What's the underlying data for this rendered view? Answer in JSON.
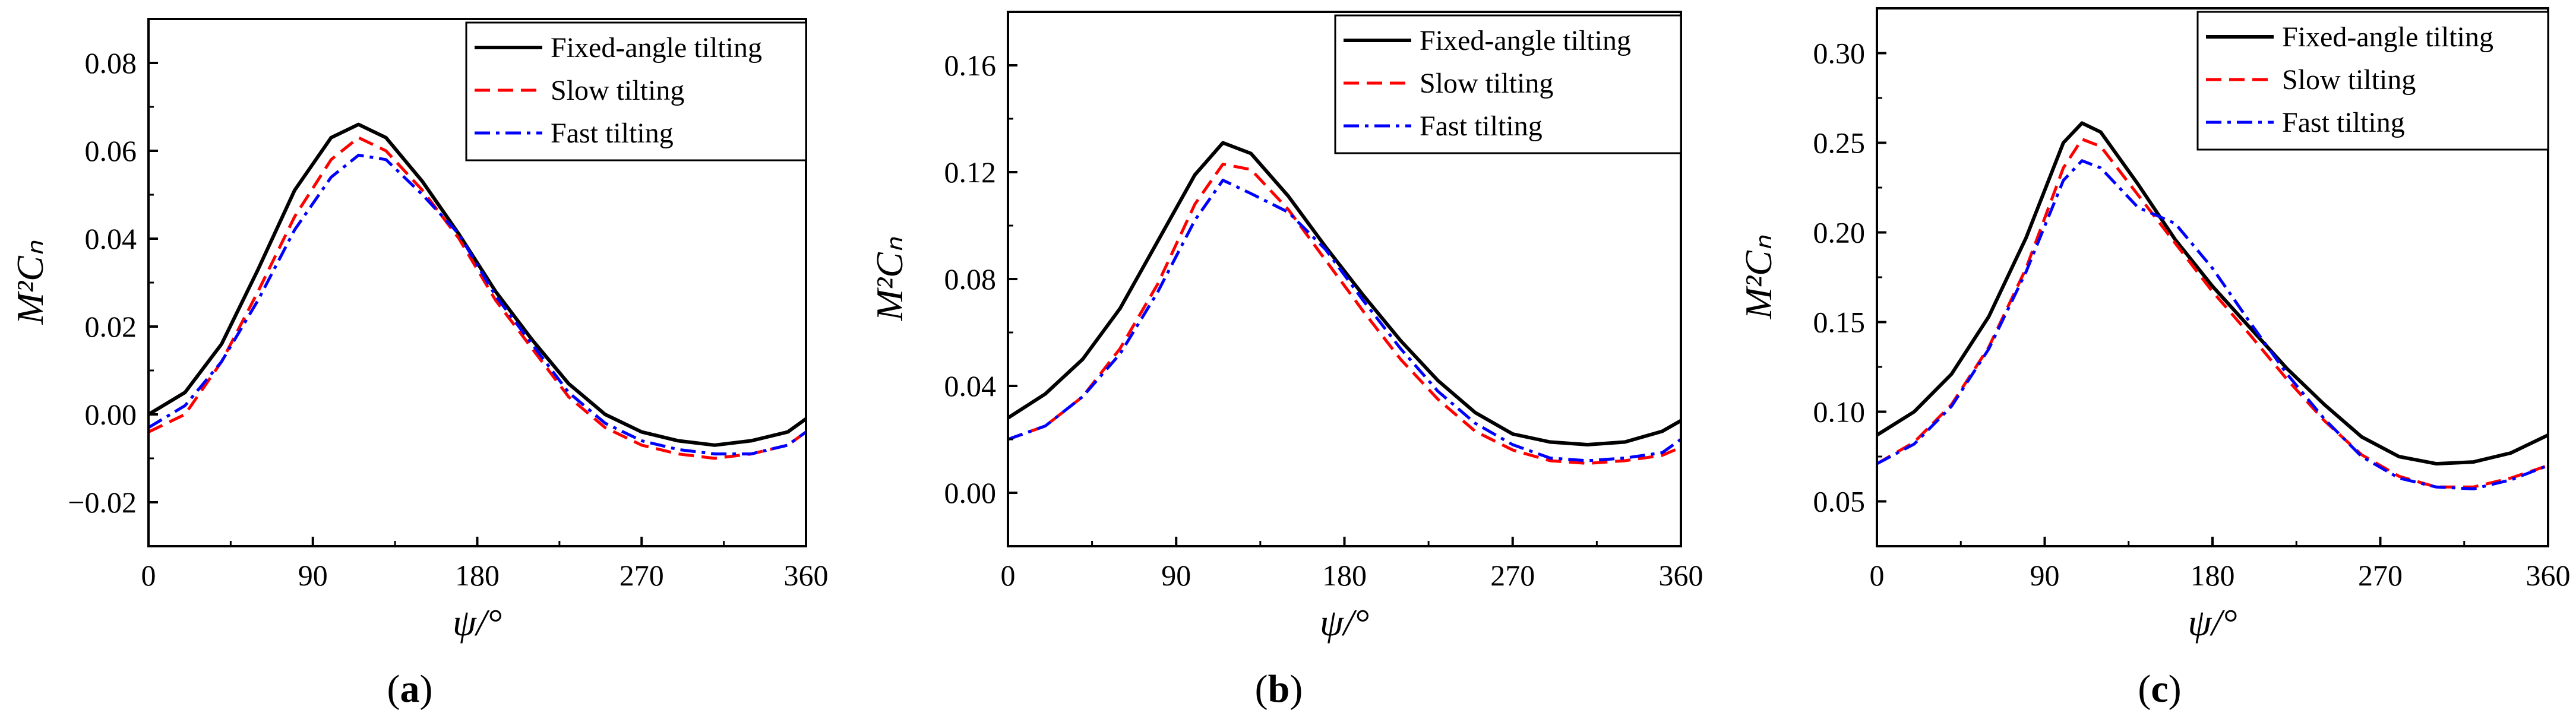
{
  "colors": {
    "fixed": "#000000",
    "slow": "#ff0000",
    "fast": "#0000ff"
  },
  "chart_data": [
    {
      "type": "line",
      "panel_label": "a",
      "xlabel": "ψ/°",
      "ylabel": "M²Cₙ",
      "xlim": [
        0,
        360
      ],
      "ylim": [
        -0.03,
        0.09
      ],
      "xticks": [
        0,
        90,
        180,
        270,
        360
      ],
      "yticks": [
        -0.02,
        0.0,
        0.02,
        0.04,
        0.06,
        0.08
      ],
      "ytick_labels": [
        "−0.02",
        "0.00",
        "0.02",
        "0.04",
        "0.06",
        "0.08"
      ],
      "legend": "top-right",
      "x": [
        0,
        20,
        40,
        60,
        80,
        100,
        115,
        130,
        150,
        170,
        190,
        210,
        230,
        250,
        270,
        290,
        310,
        330,
        350,
        360
      ],
      "series": [
        {
          "name": "Fixed-angle tilting",
          "style": "solid",
          "color_key": "fixed",
          "values": [
            0.0,
            0.005,
            0.016,
            0.033,
            0.051,
            0.063,
            0.066,
            0.063,
            0.053,
            0.041,
            0.028,
            0.017,
            0.007,
            0.0,
            -0.004,
            -0.006,
            -0.007,
            -0.006,
            -0.004,
            -0.001
          ]
        },
        {
          "name": "Slow tilting",
          "style": "dashed",
          "color_key": "slow",
          "values": [
            -0.004,
            0.0,
            0.012,
            0.028,
            0.045,
            0.058,
            0.063,
            0.06,
            0.051,
            0.04,
            0.026,
            0.015,
            0.004,
            -0.003,
            -0.007,
            -0.009,
            -0.01,
            -0.009,
            -0.007,
            -0.004
          ]
        },
        {
          "name": "Fast tilting",
          "style": "dashdot",
          "color_key": "fast",
          "values": [
            -0.003,
            0.002,
            0.012,
            0.026,
            0.042,
            0.054,
            0.059,
            0.058,
            0.05,
            0.041,
            0.027,
            0.016,
            0.005,
            -0.002,
            -0.006,
            -0.008,
            -0.009,
            -0.009,
            -0.007,
            -0.004
          ]
        }
      ]
    },
    {
      "type": "line",
      "panel_label": "b",
      "xlabel": "ψ/°",
      "ylabel": "M²Cₙ",
      "xlim": [
        0,
        360
      ],
      "ylim": [
        -0.02,
        0.18
      ],
      "xticks": [
        0,
        90,
        180,
        270,
        360
      ],
      "yticks": [
        0.0,
        0.04,
        0.08,
        0.12,
        0.16
      ],
      "ytick_labels": [
        "0.00",
        "0.04",
        "0.08",
        "0.12",
        "0.16"
      ],
      "legend": "top-right",
      "x": [
        0,
        20,
        40,
        60,
        80,
        100,
        115,
        130,
        150,
        170,
        190,
        210,
        230,
        250,
        270,
        290,
        310,
        330,
        350,
        360
      ],
      "series": [
        {
          "name": "Fixed-angle tilting",
          "style": "solid",
          "color_key": "fixed",
          "values": [
            0.028,
            0.037,
            0.05,
            0.069,
            0.094,
            0.119,
            0.131,
            0.127,
            0.111,
            0.092,
            0.074,
            0.057,
            0.042,
            0.03,
            0.022,
            0.019,
            0.018,
            0.019,
            0.023,
            0.027
          ]
        },
        {
          "name": "Slow tilting",
          "style": "dashed",
          "color_key": "slow",
          "values": [
            0.02,
            0.025,
            0.036,
            0.054,
            0.078,
            0.108,
            0.123,
            0.121,
            0.106,
            0.087,
            0.068,
            0.05,
            0.035,
            0.023,
            0.016,
            0.012,
            0.011,
            0.012,
            0.014,
            0.017
          ]
        },
        {
          "name": "Fast tilting",
          "style": "dashdot",
          "color_key": "fast",
          "values": [
            0.02,
            0.025,
            0.036,
            0.052,
            0.075,
            0.102,
            0.117,
            0.112,
            0.105,
            0.091,
            0.072,
            0.054,
            0.038,
            0.026,
            0.018,
            0.013,
            0.012,
            0.013,
            0.015,
            0.02
          ]
        }
      ]
    },
    {
      "type": "line",
      "panel_label": "c",
      "xlabel": "ψ/°",
      "ylabel": "M²Cₙ",
      "xlim": [
        0,
        360
      ],
      "ylim": [
        0.025,
        0.325
      ],
      "xticks": [
        0,
        90,
        180,
        270,
        360
      ],
      "yticks": [
        0.05,
        0.1,
        0.15,
        0.2,
        0.25,
        0.3
      ],
      "ytick_labels": [
        "0.05",
        "0.10",
        "0.15",
        "0.20",
        "0.25",
        "0.30"
      ],
      "legend": "top-right",
      "x": [
        0,
        20,
        40,
        60,
        80,
        100,
        110,
        120,
        140,
        160,
        180,
        200,
        220,
        240,
        260,
        280,
        300,
        320,
        340,
        360
      ],
      "series": [
        {
          "name": "Fixed-angle tilting",
          "style": "solid",
          "color_key": "fixed",
          "values": [
            0.087,
            0.1,
            0.121,
            0.153,
            0.197,
            0.25,
            0.261,
            0.256,
            0.227,
            0.196,
            0.17,
            0.147,
            0.124,
            0.104,
            0.086,
            0.075,
            0.071,
            0.072,
            0.077,
            0.087
          ]
        },
        {
          "name": "Slow tilting",
          "style": "dashed",
          "color_key": "slow",
          "values": [
            0.071,
            0.083,
            0.104,
            0.136,
            0.18,
            0.236,
            0.252,
            0.248,
            0.221,
            0.194,
            0.167,
            0.143,
            0.118,
            0.095,
            0.076,
            0.064,
            0.058,
            0.058,
            0.063,
            0.07
          ]
        },
        {
          "name": "Fast tilting",
          "style": "dashdot",
          "color_key": "fast",
          "values": [
            0.071,
            0.082,
            0.103,
            0.135,
            0.178,
            0.229,
            0.24,
            0.236,
            0.214,
            0.205,
            0.18,
            0.15,
            0.121,
            0.096,
            0.075,
            0.063,
            0.058,
            0.057,
            0.062,
            0.07
          ]
        }
      ]
    }
  ]
}
